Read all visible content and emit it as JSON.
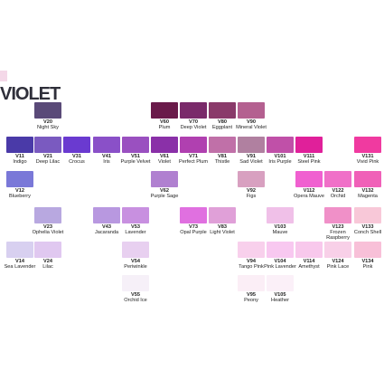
{
  "title": "VIOLET",
  "swatches": [
    {
      "code": "V20",
      "name": "Night Sky",
      "color": "#5a4a78"
    },
    {
      "code": "V60",
      "name": "Plum",
      "color": "#6a1a4a"
    },
    {
      "code": "V70",
      "name": "Deep Violet",
      "color": "#7a2a6a"
    },
    {
      "code": "V80",
      "name": "Eggplant",
      "color": "#8a3a6a"
    },
    {
      "code": "V90",
      "name": "Mineral Violet",
      "color": "#b46090"
    },
    {
      "code": "V11",
      "name": "Indigo",
      "color": "#4a3aa8"
    },
    {
      "code": "V21",
      "name": "Deep Lilac",
      "color": "#7a5ac0"
    },
    {
      "code": "V31",
      "name": "Crocus",
      "color": "#6a3ad0"
    },
    {
      "code": "V41",
      "name": "Iris",
      "color": "#8a50c8"
    },
    {
      "code": "V51",
      "name": "Purple Velvet",
      "color": "#9a50c0"
    },
    {
      "code": "V61",
      "name": "Violet",
      "color": "#8a30a8"
    },
    {
      "code": "V71",
      "name": "Perfect Plum",
      "color": "#b040b0"
    },
    {
      "code": "V81",
      "name": "Thistle",
      "color": "#c070a8"
    },
    {
      "code": "V91",
      "name": "Sad Violet",
      "color": "#b080a0"
    },
    {
      "code": "V101",
      "name": "Iris Purple",
      "color": "#c050a8"
    },
    {
      "code": "V111",
      "name": "Steel Pink",
      "color": "#e0209a"
    },
    {
      "code": "V131",
      "name": "Vivid Pink",
      "color": "#f03aa0"
    },
    {
      "code": "V12",
      "name": "Blueberry",
      "color": "#7a78d8"
    },
    {
      "code": "V62",
      "name": "Purple Sage",
      "color": "#b080d0"
    },
    {
      "code": "V92",
      "name": "Figs",
      "color": "#d8a0c0"
    },
    {
      "code": "V112",
      "name": "Opera Mauve",
      "color": "#f060d0"
    },
    {
      "code": "V122",
      "name": "Orchid",
      "color": "#f070c8"
    },
    {
      "code": "V132",
      "name": "Magenta",
      "color": "#f060b8"
    },
    {
      "code": "V23",
      "name": "Ophelia Violet",
      "color": "#b8a8e0"
    },
    {
      "code": "V43",
      "name": "Jacaranda",
      "color": "#b898e0"
    },
    {
      "code": "V53",
      "name": "Lavender",
      "color": "#c890e0"
    },
    {
      "code": "V73",
      "name": "Opal Purple",
      "color": "#e070e0"
    },
    {
      "code": "V83",
      "name": "Light Violet",
      "color": "#e0a0d8"
    },
    {
      "code": "V103",
      "name": "Mauve",
      "color": "#f0c0e8"
    },
    {
      "code": "V123",
      "name": "Frozen Raspberry",
      "color": "#f090c8"
    },
    {
      "code": "V133",
      "name": "Conch Shell",
      "color": "#f8c8d8"
    },
    {
      "code": "V14",
      "name": "Sea Lavender",
      "color": "#d8d0f0"
    },
    {
      "code": "V24",
      "name": "Lilac",
      "color": "#e0c8f0"
    },
    {
      "code": "V54",
      "name": "Periwinkle",
      "color": "#e8d0f0"
    },
    {
      "code": "V94",
      "name": "Tango Pink",
      "color": "#f8d0ec"
    },
    {
      "code": "V104",
      "name": "Pink Lavender",
      "color": "#f8c8f0"
    },
    {
      "code": "V114",
      "name": "Amethyst",
      "color": "#f8c8ec"
    },
    {
      "code": "V124",
      "name": "Pink Lace",
      "color": "#f8d0e8"
    },
    {
      "code": "V134",
      "name": "Pink",
      "color": "#f8c0d8"
    },
    {
      "code": "V55",
      "name": "Orchid Ice",
      "color": "#f6f0f8"
    },
    {
      "code": "V95",
      "name": "Peony",
      "color": "#fbeef6"
    },
    {
      "code": "V105",
      "name": "Heather",
      "color": "#fbf0f8"
    }
  ]
}
